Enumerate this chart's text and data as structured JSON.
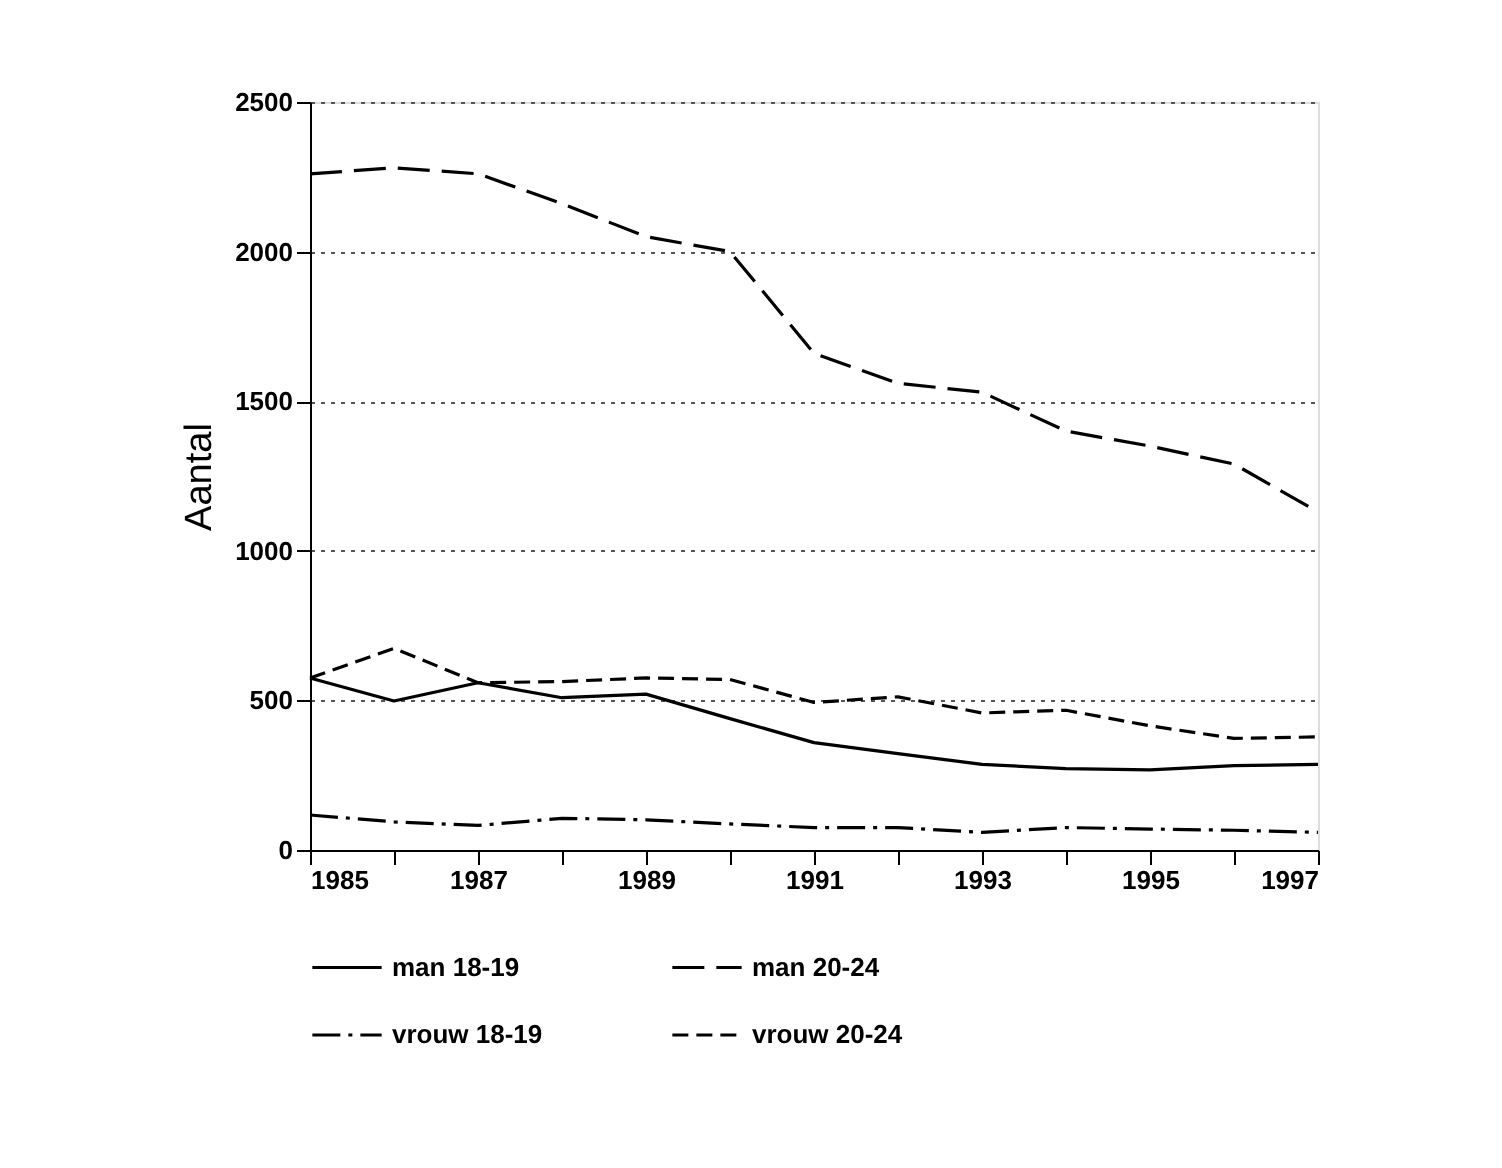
{
  "chart_data": {
    "type": "line",
    "ylabel": "Aantal",
    "x": [
      1985,
      1986,
      1987,
      1988,
      1989,
      1990,
      1991,
      1992,
      1993,
      1994,
      1995,
      1996,
      1997
    ],
    "xlim": [
      1985,
      1997
    ],
    "xticks": [
      1985,
      {
        "value": 1986,
        "label": null
      },
      1987,
      {
        "value": 1988,
        "label": null
      },
      1989,
      {
        "value": 1990,
        "label": null
      },
      1991,
      {
        "value": 1992,
        "label": null
      },
      1993,
      {
        "value": 1994,
        "label": null
      },
      1995,
      {
        "value": 1996,
        "label": null
      },
      1997
    ],
    "ylim": [
      0,
      2500
    ],
    "yticks": [
      0,
      500,
      1000,
      1500,
      2000,
      2500
    ],
    "grid": "y",
    "legend": "bottom",
    "marker": "none",
    "series": [
      {
        "name": "man 18-19",
        "color": "#000000",
        "line_style": "solid",
        "values": [
          575,
          498,
          559,
          509,
          521,
          439,
          359,
          322,
          286,
          272,
          268,
          282,
          286
        ]
      },
      {
        "name": "man 20-24",
        "color": "#000000",
        "line_style": "longdash",
        "values": [
          2260,
          2280,
          2260,
          2160,
          2050,
          2000,
          1660,
          1560,
          1530,
          1400,
          1350,
          1290,
          1130
        ]
      },
      {
        "name": "vrouw 18-19",
        "color": "#000000",
        "line_style": "dashdot",
        "values": [
          117,
          94,
          82,
          106,
          101,
          87,
          75,
          75,
          59,
          75,
          70,
          66,
          59
        ]
      },
      {
        "name": "vrouw 20-24",
        "color": "#000000",
        "line_style": "dashed",
        "values": [
          575,
          674,
          559,
          563,
          575,
          570,
          493,
          512,
          458,
          467,
          415,
          373,
          378
        ]
      }
    ]
  }
}
